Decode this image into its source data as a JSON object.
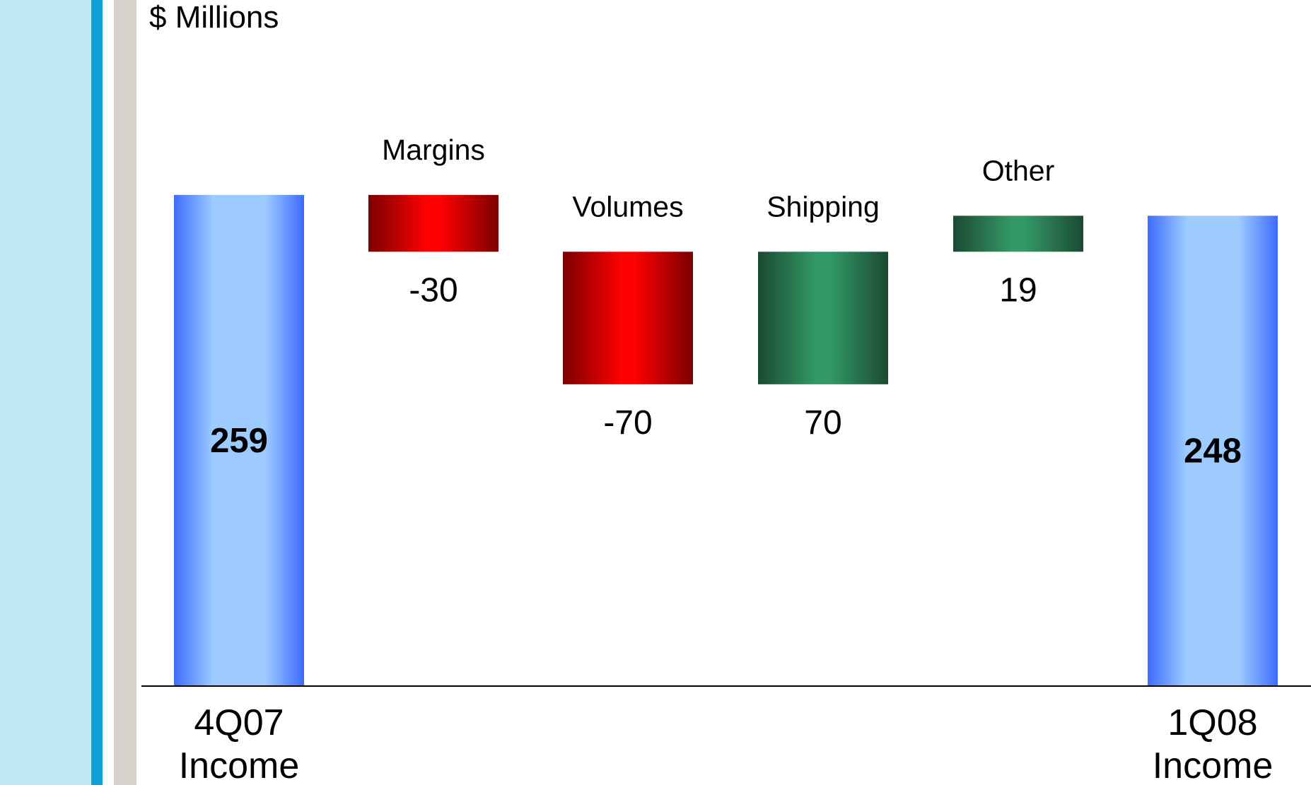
{
  "chart_data": {
    "type": "bar",
    "subtype": "waterfall",
    "unit_label": "$ Millions",
    "steps": [
      {
        "label": "4Q07 Income",
        "label_lines": [
          "4Q07",
          "Income"
        ],
        "kind": "total",
        "value": 259,
        "display": "259",
        "color": "blue"
      },
      {
        "label": "Margins",
        "kind": "delta",
        "value": -30,
        "display": "-30",
        "color": "red"
      },
      {
        "label": "Volumes",
        "kind": "delta",
        "value": -70,
        "display": "-70",
        "color": "red"
      },
      {
        "label": "Shipping",
        "kind": "delta",
        "value": 70,
        "display": "70",
        "color": "green"
      },
      {
        "label": "Other",
        "kind": "delta",
        "value": 19,
        "display": "19",
        "color": "green"
      },
      {
        "label": "1Q08 Income",
        "label_lines": [
          "1Q08",
          "Income"
        ],
        "kind": "total",
        "value": 248,
        "display": "248",
        "color": "blue"
      }
    ],
    "colors": {
      "total": "#3d6cff",
      "total_light": "#9dcbff",
      "negative": "#ff0000",
      "negative_dark": "#7a0000",
      "positive": "#339966",
      "positive_dark": "#1b4a33"
    }
  }
}
